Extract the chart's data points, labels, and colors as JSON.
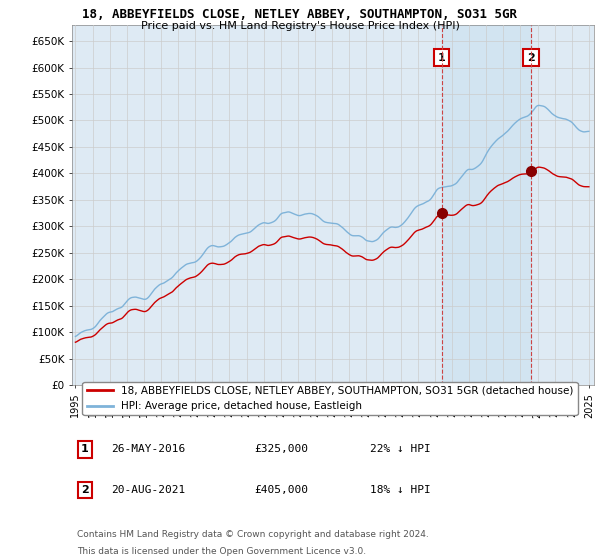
{
  "title": "18, ABBEYFIELDS CLOSE, NETLEY ABBEY, SOUTHAMPTON, SO31 5GR",
  "subtitle": "Price paid vs. HM Land Registry's House Price Index (HPI)",
  "legend_property": "18, ABBEYFIELDS CLOSE, NETLEY ABBEY, SOUTHAMPTON, SO31 5GR (detached house)",
  "legend_hpi": "HPI: Average price, detached house, Eastleigh",
  "ylabel_ticks": [
    "£0",
    "£50K",
    "£100K",
    "£150K",
    "£200K",
    "£250K",
    "£300K",
    "£350K",
    "£400K",
    "£450K",
    "£500K",
    "£550K",
    "£600K",
    "£650K"
  ],
  "ytick_values": [
    0,
    50000,
    100000,
    150000,
    200000,
    250000,
    300000,
    350000,
    400000,
    450000,
    500000,
    550000,
    600000,
    650000
  ],
  "ylim": [
    0,
    680000
  ],
  "xlim_start": 1994.8,
  "xlim_end": 2025.3,
  "purchase1": {
    "date_x": 2016.4,
    "price": 325000,
    "label": "1",
    "date_str": "26-MAY-2016",
    "pct": "22% ↓ HPI"
  },
  "purchase2": {
    "date_x": 2021.63,
    "price": 405000,
    "label": "2",
    "date_str": "20-AUG-2021",
    "pct": "18% ↓ HPI"
  },
  "footnote1": "Contains HM Land Registry data © Crown copyright and database right 2024.",
  "footnote2": "This data is licensed under the Open Government Licence v3.0.",
  "color_property": "#cc0000",
  "color_hpi": "#7fb3d9",
  "color_hpi_fill": "#deeaf4",
  "color_grid": "#cccccc",
  "color_bg": "#ffffff",
  "color_dashed": "#cc0000",
  "background_plot": "#deeaf4"
}
